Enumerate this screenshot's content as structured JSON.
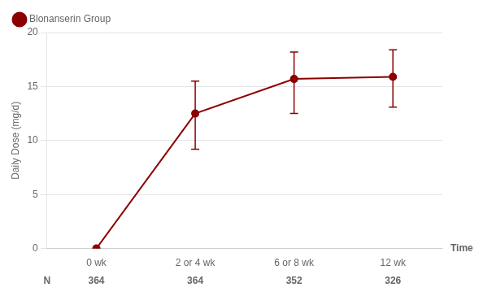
{
  "chart_data": {
    "type": "line",
    "xlabel": "Time",
    "ylabel": "Daily Dose (mg/d)",
    "categories": [
      "0 wk",
      "2 or 4 wk",
      "6 or 8 wk",
      "12 wk"
    ],
    "series": [
      {
        "name": "Blonanserin Group",
        "color": "#8B0000",
        "marker": "circle",
        "values": [
          0.0,
          12.5,
          15.7,
          15.9
        ],
        "err_lower": [
          0.0,
          3.3,
          3.2,
          2.8
        ],
        "err_upper": [
          0.0,
          3.0,
          2.5,
          2.5
        ]
      }
    ],
    "n_label": "N",
    "n_values": [
      364,
      364,
      352,
      326
    ],
    "ylim": [
      0,
      20
    ],
    "yticks": [
      0,
      5,
      10,
      15,
      20
    ],
    "grid": true,
    "legend": "upper left"
  }
}
